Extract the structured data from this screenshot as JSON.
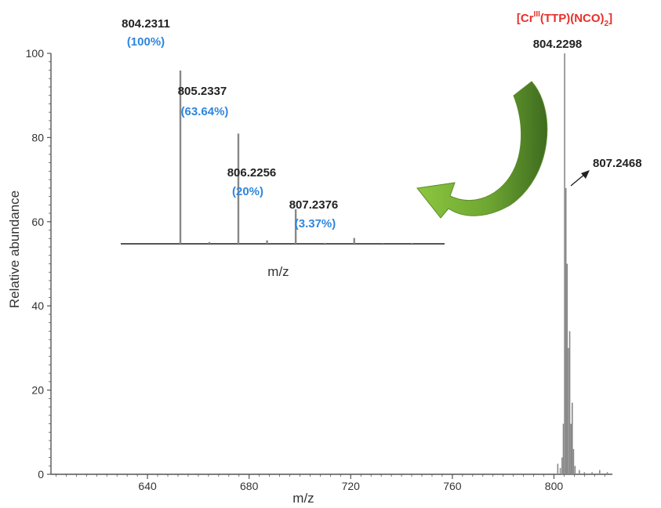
{
  "chart_data": [
    {
      "type": "bar",
      "title": "",
      "xlabel": "m/z",
      "ylabel": "Relative abundance",
      "xlim": [
        602,
        823
      ],
      "ylim": [
        0,
        100
      ],
      "x_ticks": [
        "640",
        "680",
        "720",
        "760",
        "800"
      ],
      "y_ticks": [
        "0",
        "20",
        "40",
        "60",
        "80",
        "100"
      ],
      "grid": false,
      "compound_label": {
        "base": "[Cr",
        "superscript": "III",
        "middle": "(TTP)(NCO)",
        "subscript": "2",
        "end": "]"
      },
      "series": [
        {
          "x": [
            801.5,
            802.5,
            803.2,
            803.7,
            804.2,
            804.7,
            805.2,
            805.7,
            806.2,
            806.7,
            807.2,
            807.7,
            808.3,
            810.0,
            812.0,
            815.0,
            818.0,
            821.0
          ],
          "values": [
            2.5,
            1.5,
            4.0,
            12.0,
            100.0,
            68.0,
            50.0,
            30.0,
            34.0,
            12.0,
            17.0,
            6.0,
            2.0,
            1.0,
            0.5,
            0.5,
            1.0,
            0.5
          ]
        }
      ],
      "annotations": [
        {
          "text": "804.2298",
          "x": 804.2298
        },
        {
          "text": "807.2468",
          "x": 807.2468
        }
      ]
    },
    {
      "type": "bar",
      "title": "",
      "xlabel": "m/z",
      "ylabel": "",
      "xlim": [
        803.2,
        808.8
      ],
      "ylim": [
        0,
        100
      ],
      "series": [
        {
          "x": [
            804.2311,
            804.73,
            805.2337,
            805.73,
            806.2256,
            806.73,
            807.2376,
            807.73,
            808.24
          ],
          "values": [
            100,
            1.0,
            63.64,
            2.0,
            20.0,
            0.5,
            3.37,
            0.3,
            0.5
          ]
        }
      ],
      "annotations": [
        {
          "mass": "804.2311",
          "percent": "(100%)",
          "x": 804.2311,
          "value": 100
        },
        {
          "mass": "805.2337",
          "percent": "(63.64%)",
          "x": 805.2337,
          "value": 63.64
        },
        {
          "mass": "806.2256",
          "percent": "(20%)",
          "x": 806.2256,
          "value": 20.0
        },
        {
          "mass": "807.2376",
          "percent": "(3.37%)",
          "x": 807.2376,
          "value": 3.37
        }
      ]
    }
  ],
  "colors": {
    "axis": "#555555",
    "bar": "#888888",
    "mass_label": "#222222",
    "percent_label": "#2E86DE",
    "compound_label": "#E8302A",
    "arrow_light": "#8CC63F",
    "arrow_dark": "#3E6B1F"
  }
}
